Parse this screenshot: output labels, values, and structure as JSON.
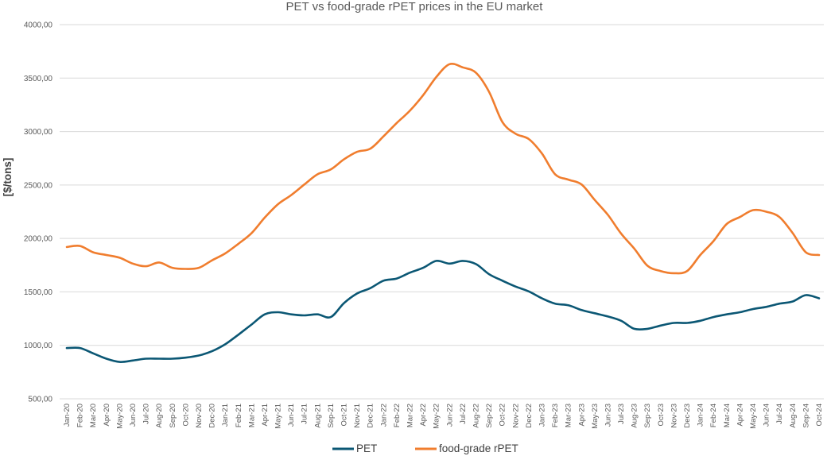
{
  "chart_data": {
    "type": "line",
    "title": "PET vs food-grade rPET prices in the EU market",
    "xlabel": "",
    "ylabel": "[$/tons]",
    "ylim": [
      500,
      4000
    ],
    "ytick_labels": [
      "500,00",
      "1000,00",
      "1500,00",
      "2000,00",
      "2500,00",
      "3000,00",
      "3500,00",
      "4000,00"
    ],
    "grid": "horizontal",
    "legend": "bottom-center",
    "categories": [
      "Jan-20",
      "Feb-20",
      "Mar-20",
      "Apr-20",
      "May-20",
      "Jun-20",
      "Jul-20",
      "Aug-20",
      "Sep-20",
      "Oct-20",
      "Nov-20",
      "Dec-20",
      "Jan-21",
      "Feb-21",
      "Mar-21",
      "Apr-21",
      "May-21",
      "Jun-21",
      "Jul-21",
      "Aug-21",
      "Sep-21",
      "Oct-21",
      "Nov-21",
      "Dec-21",
      "Jan-22",
      "Feb-22",
      "Mar-22",
      "Apr-22",
      "May-22",
      "Jun-22",
      "Jul-22",
      "Aug-22",
      "Sep-22",
      "Oct-22",
      "Nov-22",
      "Dec-22",
      "Jan-23",
      "Feb-23",
      "Mar-23",
      "Apr-23",
      "May-23",
      "Jun-23",
      "Jul-23",
      "Aug-23",
      "Sep-23",
      "Oct-23",
      "Nov-23",
      "Dec-23",
      "Jan-24",
      "Feb-24",
      "Mar-24",
      "Apr-24",
      "May-24",
      "Jun-24",
      "Jul-24",
      "Aug-24",
      "Sep-24",
      "Oct-24"
    ],
    "series": [
      {
        "name": "PET",
        "color": "#0b5774",
        "values": [
          975,
          975,
          925,
          875,
          845,
          858,
          875,
          875,
          875,
          885,
          905,
          945,
          1010,
          1100,
          1195,
          1290,
          1310,
          1290,
          1280,
          1290,
          1265,
          1395,
          1485,
          1535,
          1605,
          1625,
          1680,
          1725,
          1790,
          1765,
          1790,
          1760,
          1665,
          1605,
          1550,
          1505,
          1440,
          1390,
          1375,
          1330,
          1300,
          1270,
          1230,
          1155,
          1155,
          1185,
          1210,
          1210,
          1230,
          1265,
          1290,
          1310,
          1340,
          1360,
          1390,
          1410,
          1470,
          1440
        ]
      },
      {
        "name": "food-grade rPET",
        "color": "#f07d2e",
        "values": [
          1920,
          1930,
          1870,
          1845,
          1820,
          1765,
          1740,
          1775,
          1725,
          1715,
          1725,
          1795,
          1860,
          1950,
          2050,
          2195,
          2320,
          2405,
          2505,
          2600,
          2645,
          2740,
          2810,
          2840,
          2955,
          3080,
          3195,
          3340,
          3510,
          3630,
          3600,
          3550,
          3370,
          3090,
          2980,
          2930,
          2795,
          2600,
          2550,
          2505,
          2360,
          2220,
          2045,
          1905,
          1745,
          1695,
          1675,
          1695,
          1845,
          1975,
          2135,
          2200,
          2265,
          2250,
          2200,
          2050,
          1870,
          1845
        ]
      }
    ]
  }
}
